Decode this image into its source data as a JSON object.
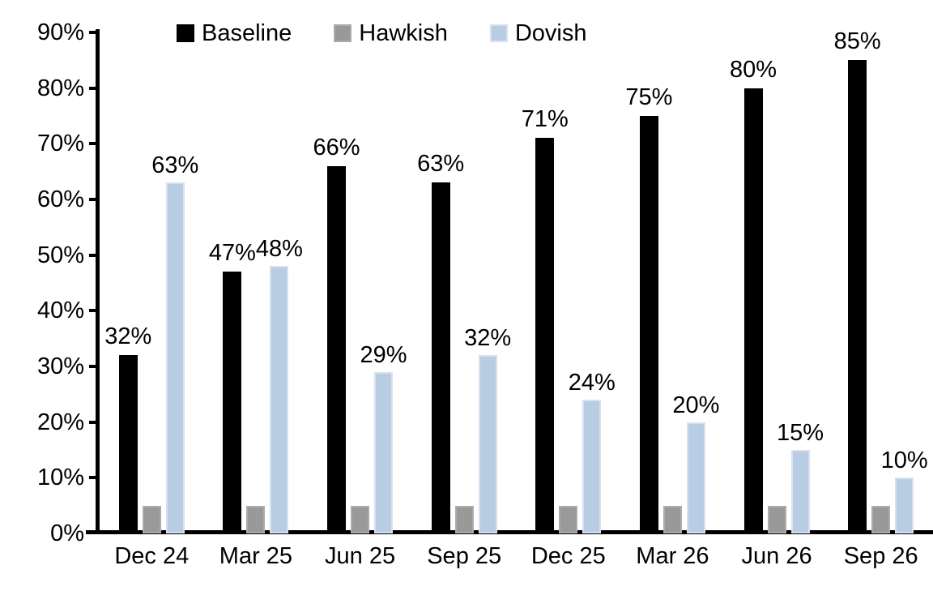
{
  "chart_data": {
    "type": "bar",
    "title": "",
    "xlabel": "",
    "ylabel": "",
    "categories": [
      "Dec 24",
      "Mar 25",
      "Jun 25",
      "Sep 25",
      "Dec 25",
      "Mar 26",
      "Jun 26",
      "Sep 26"
    ],
    "series": [
      {
        "name": "Baseline",
        "color": "#000000",
        "border_color": "#000000",
        "values": [
          32,
          47,
          66,
          63,
          71,
          75,
          80,
          85
        ],
        "data_labels": [
          "32%",
          "47%",
          "66%",
          "63%",
          "71%",
          "75%",
          "80%",
          "85%"
        ]
      },
      {
        "name": "Hawkish",
        "color": "#999999",
        "border_color": "#ACACAC",
        "values": [
          5,
          5,
          5,
          5,
          5,
          5,
          5,
          5
        ],
        "data_labels": [
          "",
          "",
          "",
          "",
          "",
          "",
          "",
          ""
        ]
      },
      {
        "name": "Dovish",
        "color": "#B8CCE4",
        "border_color": "#D8E1EF",
        "values": [
          63,
          48,
          29,
          32,
          24,
          20,
          15,
          10
        ],
        "data_labels": [
          "63%",
          "48%",
          "29%",
          "32%",
          "24%",
          "20%",
          "15%",
          "10%"
        ]
      }
    ],
    "ylim": [
      0,
      90
    ],
    "ytick_step": 10,
    "yticklabels": [
      "0%",
      "10%",
      "20%",
      "30%",
      "40%",
      "50%",
      "60%",
      "70%",
      "80%",
      "90%"
    ],
    "grid": false,
    "legend_position": "top-center"
  }
}
